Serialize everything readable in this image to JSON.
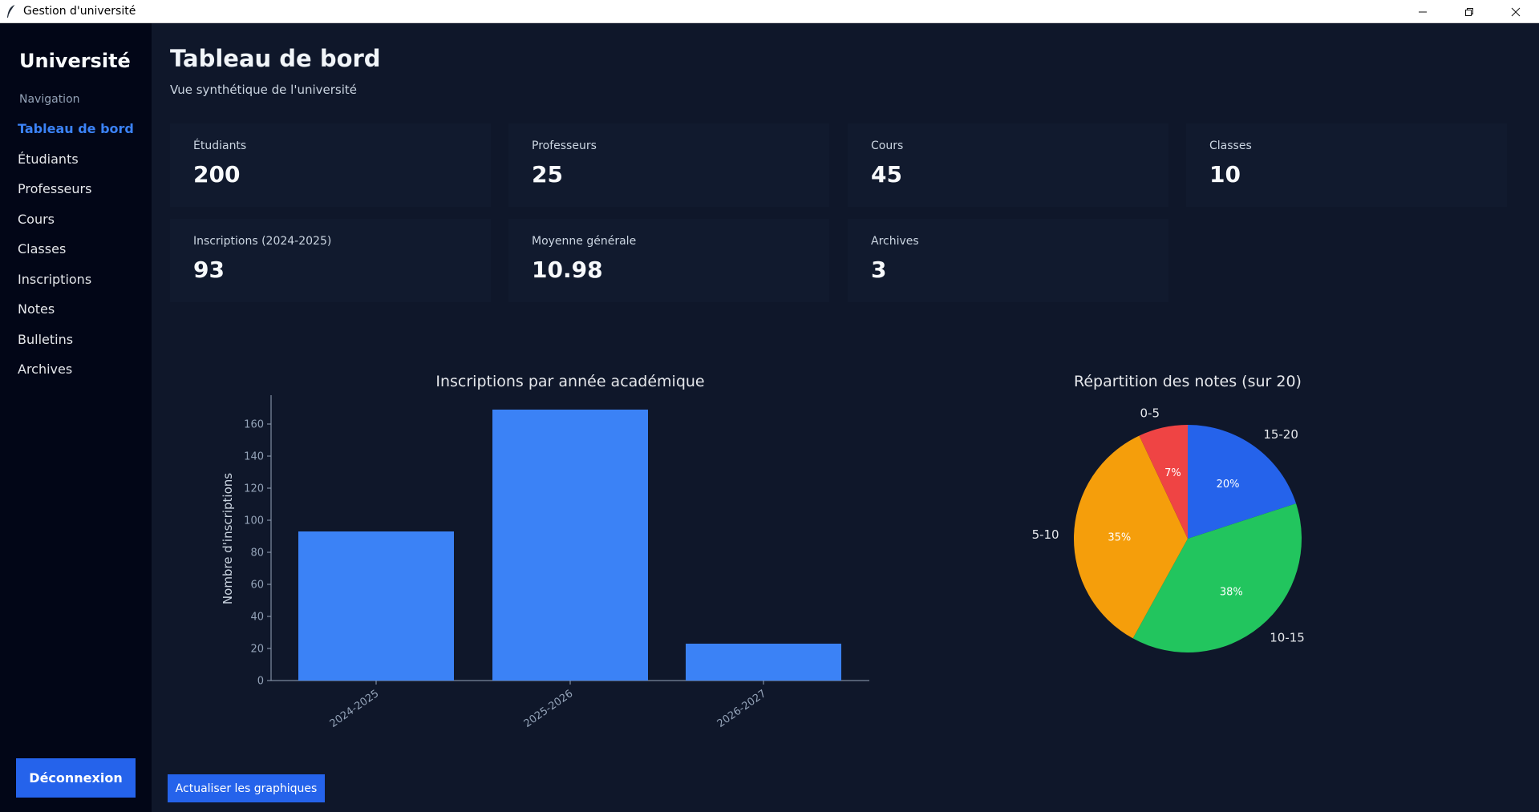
{
  "window": {
    "title": "Gestion d'université",
    "icon": "feather-icon",
    "controls": {
      "minimize": "—",
      "restore": "❐",
      "close": "✕"
    }
  },
  "sidebar": {
    "brand": "Université",
    "nav_label": "Navigation",
    "items": [
      {
        "label": "Tableau de bord",
        "active": true
      },
      {
        "label": "Étudiants",
        "active": false
      },
      {
        "label": "Professeurs",
        "active": false
      },
      {
        "label": "Cours",
        "active": false
      },
      {
        "label": "Classes",
        "active": false
      },
      {
        "label": "Inscriptions",
        "active": false
      },
      {
        "label": "Notes",
        "active": false
      },
      {
        "label": "Bulletins",
        "active": false
      },
      {
        "label": "Archives",
        "active": false
      }
    ],
    "logout_label": "Déconnexion"
  },
  "header": {
    "title": "Tableau de bord",
    "subtitle": "Vue synthétique de l'université"
  },
  "stats": [
    {
      "label": "Étudiants",
      "value": "200"
    },
    {
      "label": "Professeurs",
      "value": "25"
    },
    {
      "label": "Cours",
      "value": "45"
    },
    {
      "label": "Classes",
      "value": "10"
    },
    {
      "label": "Inscriptions (2024-2025)",
      "value": "93"
    },
    {
      "label": "Moyenne générale",
      "value": "10.98"
    },
    {
      "label": "Archives",
      "value": "3"
    }
  ],
  "chart_data": [
    {
      "type": "bar",
      "title": "Inscriptions par année académique",
      "xlabel": "",
      "ylabel": "Nombre d'inscriptions",
      "categories": [
        "2024-2025",
        "2025-2026",
        "2026-2027"
      ],
      "values": [
        93,
        169,
        23
      ],
      "ylim": [
        0,
        177
      ],
      "yticks": [
        0,
        20,
        40,
        60,
        80,
        100,
        120,
        140,
        160
      ],
      "bar_color": "#3b82f6",
      "grid": false
    },
    {
      "type": "pie",
      "title": "Répartition des notes (sur 20)",
      "labels": [
        "15-20",
        "10-15",
        "5-10",
        "0-5"
      ],
      "values": [
        20,
        38,
        35,
        7
      ],
      "value_labels": [
        "20%",
        "38%",
        "35%",
        "7%"
      ],
      "colors": [
        "#2563eb",
        "#22c55e",
        "#f59e0b",
        "#ef4444"
      ]
    }
  ],
  "actions": {
    "refresh_label": "Actualiser les graphiques"
  }
}
